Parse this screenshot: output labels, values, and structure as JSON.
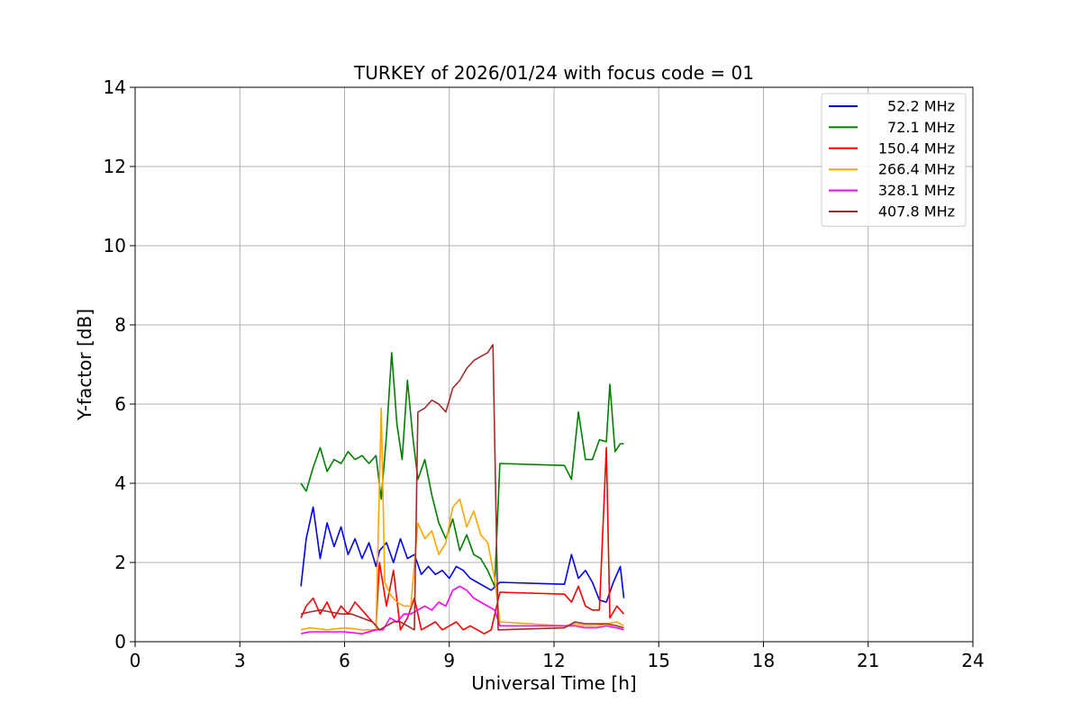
{
  "chart_data": {
    "type": "line",
    "title": "TURKEY of 2026/01/24 with focus code = 01",
    "xlabel": "Universal Time [h]",
    "ylabel": "Y-factor [dB]",
    "xlim": [
      0,
      24
    ],
    "ylim": [
      0,
      14
    ],
    "xticks": [
      0,
      3,
      6,
      9,
      12,
      15,
      18,
      21,
      24
    ],
    "yticks": [
      0,
      2,
      4,
      6,
      8,
      10,
      12,
      14
    ],
    "grid": true,
    "legend_position": "top-right",
    "series": [
      {
        "name": "52.2 MHz",
        "color": "#0000ff",
        "x": [
          4.75,
          4.9,
          5.1,
          5.3,
          5.5,
          5.7,
          5.9,
          6.1,
          6.3,
          6.5,
          6.7,
          6.9,
          7.0,
          7.2,
          7.4,
          7.6,
          7.8,
          8.0,
          8.2,
          8.4,
          8.6,
          8.8,
          9.0,
          9.2,
          9.4,
          9.6,
          9.8,
          10.0,
          10.2,
          10.45,
          12.3,
          12.5,
          12.7,
          12.9,
          13.1,
          13.3,
          13.5,
          13.7,
          13.9,
          14.0
        ],
        "y": [
          1.4,
          2.6,
          3.4,
          2.1,
          3.0,
          2.4,
          2.9,
          2.2,
          2.6,
          2.1,
          2.5,
          1.9,
          2.3,
          2.5,
          2.0,
          2.6,
          2.1,
          2.2,
          1.7,
          1.9,
          1.7,
          1.8,
          1.6,
          1.9,
          1.8,
          1.6,
          1.5,
          1.4,
          1.3,
          1.5,
          1.45,
          2.2,
          1.6,
          1.8,
          1.5,
          1.05,
          1.0,
          1.5,
          1.9,
          1.1
        ]
      },
      {
        "name": "72.1 MHz",
        "color": "#008000",
        "x": [
          4.75,
          4.9,
          5.1,
          5.3,
          5.5,
          5.7,
          5.9,
          6.1,
          6.3,
          6.5,
          6.7,
          6.9,
          7.05,
          7.2,
          7.35,
          7.5,
          7.65,
          7.8,
          7.95,
          8.1,
          8.3,
          8.5,
          8.7,
          8.9,
          9.1,
          9.3,
          9.5,
          9.7,
          9.9,
          10.1,
          10.3,
          10.45,
          12.3,
          12.5,
          12.7,
          12.9,
          13.1,
          13.3,
          13.5,
          13.6,
          13.75,
          13.9,
          14.0
        ],
        "y": [
          4.0,
          3.8,
          4.4,
          4.9,
          4.3,
          4.6,
          4.5,
          4.8,
          4.6,
          4.7,
          4.5,
          4.7,
          3.6,
          5.2,
          7.3,
          5.5,
          4.6,
          6.6,
          5.2,
          4.1,
          4.6,
          3.7,
          3.0,
          2.6,
          3.1,
          2.3,
          2.7,
          2.2,
          2.1,
          1.8,
          1.4,
          4.5,
          4.45,
          4.1,
          5.8,
          4.6,
          4.6,
          5.1,
          5.05,
          6.5,
          4.8,
          5.0,
          5.0
        ]
      },
      {
        "name": "150.4 MHz",
        "color": "#ff0000",
        "x": [
          4.75,
          4.9,
          5.1,
          5.3,
          5.5,
          5.7,
          5.9,
          6.1,
          6.3,
          6.5,
          6.7,
          6.9,
          7.0,
          7.2,
          7.4,
          7.6,
          7.8,
          8.0,
          8.2,
          8.4,
          8.6,
          8.8,
          9.0,
          9.2,
          9.4,
          9.6,
          9.8,
          10.0,
          10.2,
          10.45,
          12.3,
          12.5,
          12.7,
          12.9,
          13.1,
          13.3,
          13.5,
          13.6,
          13.8,
          14.0
        ],
        "y": [
          0.6,
          0.9,
          1.1,
          0.7,
          1.0,
          0.6,
          0.9,
          0.7,
          1.0,
          0.8,
          0.6,
          0.4,
          2.0,
          0.9,
          1.8,
          0.3,
          0.6,
          1.1,
          0.3,
          0.4,
          0.5,
          0.3,
          0.4,
          0.5,
          0.3,
          0.4,
          0.3,
          0.2,
          0.3,
          1.25,
          1.2,
          1.0,
          1.4,
          0.9,
          0.8,
          0.8,
          4.9,
          0.6,
          0.9,
          0.7
        ]
      },
      {
        "name": "266.4 MHz",
        "color": "#ffa500",
        "x": [
          4.75,
          5.0,
          5.5,
          6.0,
          6.5,
          6.9,
          7.05,
          7.15,
          7.3,
          7.5,
          7.7,
          7.9,
          8.1,
          8.3,
          8.5,
          8.7,
          8.9,
          9.1,
          9.3,
          9.5,
          9.7,
          9.9,
          10.1,
          10.3,
          10.45,
          12.3,
          12.6,
          12.9,
          13.2,
          13.5,
          13.8,
          14.0
        ],
        "y": [
          0.3,
          0.35,
          0.3,
          0.35,
          0.3,
          0.3,
          5.9,
          1.5,
          1.2,
          1.0,
          0.9,
          0.9,
          3.0,
          2.6,
          2.8,
          2.2,
          2.5,
          3.4,
          3.6,
          2.9,
          3.3,
          2.7,
          2.5,
          1.6,
          0.5,
          0.4,
          0.45,
          0.4,
          0.4,
          0.45,
          0.5,
          0.4
        ]
      },
      {
        "name": "328.1 MHz",
        "color": "#ff00ff",
        "x": [
          4.75,
          5.0,
          5.5,
          6.0,
          6.5,
          6.9,
          7.1,
          7.3,
          7.5,
          7.7,
          7.9,
          8.1,
          8.3,
          8.5,
          8.7,
          8.9,
          9.1,
          9.3,
          9.5,
          9.7,
          9.9,
          10.1,
          10.3,
          10.45,
          12.3,
          12.6,
          12.9,
          13.2,
          13.5,
          13.8,
          14.0
        ],
        "y": [
          0.2,
          0.25,
          0.25,
          0.25,
          0.2,
          0.3,
          0.3,
          0.6,
          0.5,
          0.7,
          0.7,
          0.8,
          0.9,
          0.8,
          1.0,
          0.9,
          1.3,
          1.4,
          1.3,
          1.1,
          1.0,
          0.9,
          0.8,
          0.4,
          0.4,
          0.4,
          0.35,
          0.35,
          0.4,
          0.35,
          0.3
        ]
      },
      {
        "name": "407.8 MHz",
        "color": "#a52a2a",
        "x": [
          4.75,
          5.0,
          5.3,
          5.6,
          5.9,
          6.2,
          6.5,
          6.8,
          7.0,
          7.2,
          7.4,
          7.6,
          7.8,
          8.0,
          8.1,
          8.3,
          8.5,
          8.7,
          8.9,
          9.1,
          9.3,
          9.5,
          9.7,
          9.9,
          10.1,
          10.25,
          10.4,
          10.45,
          12.3,
          12.6,
          12.9,
          13.2,
          13.5,
          13.8,
          14.0
        ],
        "y": [
          0.7,
          0.75,
          0.8,
          0.75,
          0.7,
          0.7,
          0.6,
          0.5,
          0.3,
          0.4,
          0.5,
          0.5,
          0.4,
          0.3,
          5.8,
          5.9,
          6.1,
          6.0,
          5.8,
          6.4,
          6.6,
          6.9,
          7.1,
          7.2,
          7.3,
          7.5,
          0.3,
          0.3,
          0.35,
          0.5,
          0.45,
          0.45,
          0.45,
          0.4,
          0.35
        ]
      }
    ]
  }
}
